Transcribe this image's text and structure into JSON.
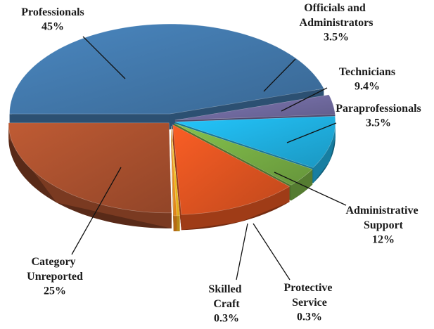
{
  "chart_data": {
    "type": "pie",
    "categories": [
      "Professionals",
      "Officials and Administrators",
      "Technicians",
      "Paraprofessionals",
      "Administrative Support",
      "Protective Service",
      "Skilled Craft",
      "Category Unreported"
    ],
    "values": [
      45,
      3.5,
      9.4,
      3.5,
      12,
      0.3,
      0.3,
      25
    ],
    "value_labels": [
      "45%",
      "3.5%",
      "9.4%",
      "3.5%",
      "12%",
      "0.3%",
      "0.3%",
      "25%"
    ],
    "colors": [
      "#3f72a3",
      "#6c6699",
      "#1ea8d6",
      "#71a541",
      "#d4501f",
      "#f7b81e",
      "#f28c1c",
      "#a24d2c"
    ]
  }
}
